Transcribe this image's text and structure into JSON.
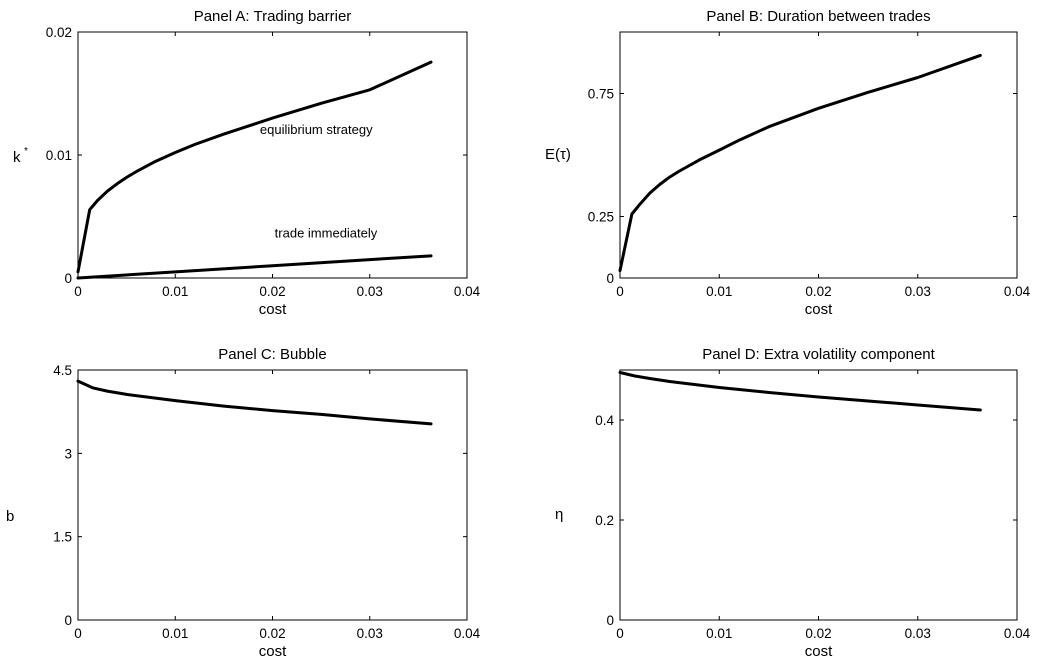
{
  "chart_data": [
    {
      "id": "A",
      "type": "line",
      "title": "Panel A: Trading barrier",
      "xlabel": "cost",
      "ylabel": "k",
      "ylabel_sup": "*",
      "xlim": [
        0,
        0.04
      ],
      "ylim": [
        0,
        0.02
      ],
      "xticks": [
        0,
        0.01,
        0.02,
        0.03,
        0.04
      ],
      "xtick_labels": [
        "0",
        "0.01",
        "0.02",
        "0.03",
        "0.04"
      ],
      "yticks": [
        0,
        0.01,
        0.02
      ],
      "ytick_labels": [
        "0",
        "0.01",
        "0.02"
      ],
      "grid": false,
      "series": [
        {
          "name": "equilibrium strategy",
          "x": [
            0,
            0.0012,
            0.002,
            0.003,
            0.004,
            0.005,
            0.006,
            0.008,
            0.01,
            0.012,
            0.015,
            0.02,
            0.025,
            0.03,
            0.0363
          ],
          "y": [
            0.0005,
            0.00555,
            0.0063,
            0.00705,
            0.00765,
            0.00818,
            0.00865,
            0.0095,
            0.0102,
            0.01085,
            0.0117,
            0.013,
            0.0142,
            0.0153,
            0.01755
          ]
        },
        {
          "name": "trade immediately",
          "x": [
            0,
            0.01,
            0.02,
            0.03,
            0.0363
          ],
          "y": [
            0,
            0.0005,
            0.001,
            0.0015,
            0.0018
          ]
        }
      ],
      "annotations": [
        {
          "text": "equilibrium strategy",
          "x": 0.0245,
          "y": 0.0117
        },
        {
          "text": "trade immediately",
          "x": 0.0255,
          "y": 0.0033
        }
      ]
    },
    {
      "id": "B",
      "type": "line",
      "title": "Panel B: Duration  between trades",
      "xlabel": "cost",
      "ylabel": "E(τ)",
      "xlim": [
        0,
        0.04
      ],
      "ylim": [
        0,
        1
      ],
      "xticks": [
        0,
        0.01,
        0.02,
        0.03,
        0.04
      ],
      "xtick_labels": [
        "0",
        "0.01",
        "0.02",
        "0.03",
        "0.04"
      ],
      "yticks": [
        0,
        0.25,
        0.75
      ],
      "ytick_labels": [
        "0",
        "0.25",
        "0.75"
      ],
      "grid": false,
      "series": [
        {
          "name": "",
          "x": [
            0,
            0.0012,
            0.002,
            0.003,
            0.004,
            0.005,
            0.006,
            0.008,
            0.01,
            0.012,
            0.015,
            0.02,
            0.025,
            0.03,
            0.0363
          ],
          "y": [
            0.03,
            0.26,
            0.3,
            0.345,
            0.38,
            0.41,
            0.435,
            0.48,
            0.52,
            0.56,
            0.615,
            0.69,
            0.755,
            0.815,
            0.905
          ]
        }
      ]
    },
    {
      "id": "C",
      "type": "line",
      "title": "Panel C: Bubble",
      "xlabel": "cost",
      "ylabel": "b",
      "xlim": [
        0,
        0.04
      ],
      "ylim": [
        0,
        4.5
      ],
      "xticks": [
        0,
        0.01,
        0.02,
        0.03,
        0.04
      ],
      "xtick_labels": [
        "0",
        "0.01",
        "0.02",
        "0.03",
        "0.04"
      ],
      "yticks": [
        0,
        1.5,
        3,
        4.5
      ],
      "ytick_labels": [
        "0",
        "1.5",
        "3",
        "4.5"
      ],
      "grid": false,
      "series": [
        {
          "name": "",
          "x": [
            0,
            0.0015,
            0.003,
            0.005,
            0.01,
            0.015,
            0.02,
            0.025,
            0.03,
            0.0363
          ],
          "y": [
            4.3,
            4.18,
            4.12,
            4.06,
            3.95,
            3.85,
            3.77,
            3.7,
            3.62,
            3.53
          ]
        }
      ]
    },
    {
      "id": "D",
      "type": "line",
      "title": "Panel D: Extra volatility component",
      "xlabel": "cost",
      "ylabel": "η",
      "xlim": [
        0,
        0.04
      ],
      "ylim": [
        0,
        0.5
      ],
      "xticks": [
        0,
        0.01,
        0.02,
        0.03,
        0.04
      ],
      "xtick_labels": [
        "0",
        "0.01",
        "0.02",
        "0.03",
        "0.04"
      ],
      "yticks": [
        0,
        0.2,
        0.4
      ],
      "ytick_labels": [
        "0",
        "0.2",
        "0.4"
      ],
      "grid": false,
      "series": [
        {
          "name": "",
          "x": [
            0,
            0.0015,
            0.003,
            0.005,
            0.01,
            0.015,
            0.02,
            0.025,
            0.03,
            0.0363
          ],
          "y": [
            0.495,
            0.488,
            0.483,
            0.477,
            0.465,
            0.455,
            0.446,
            0.438,
            0.43,
            0.42
          ]
        }
      ]
    }
  ]
}
